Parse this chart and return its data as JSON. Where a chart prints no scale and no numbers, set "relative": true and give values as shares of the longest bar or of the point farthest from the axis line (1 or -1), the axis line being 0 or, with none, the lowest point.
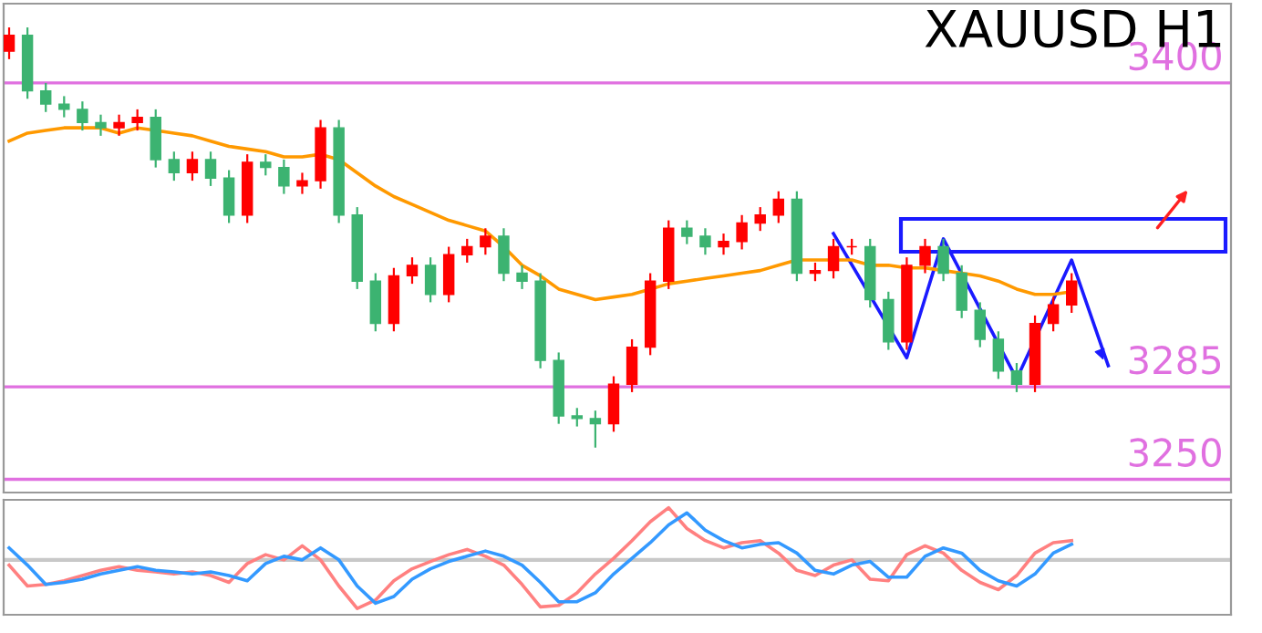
{
  "chart_data": [
    {
      "type": "candlestick",
      "title": "XAUUSD H1",
      "grid": false,
      "categories": [
        null,
        null,
        null,
        null,
        null,
        null,
        null,
        null,
        null,
        null,
        null,
        null,
        null,
        null,
        null,
        null,
        null,
        null,
        null,
        null,
        null,
        null,
        null,
        null,
        null,
        null,
        null,
        null,
        null,
        null,
        null,
        null,
        null,
        null,
        null,
        null,
        null,
        null,
        null,
        null,
        null,
        null,
        null,
        null,
        null,
        null,
        null,
        null,
        null,
        null,
        null,
        null,
        null,
        null,
        null,
        null,
        null,
        null,
        null,
        null,
        null,
        null
      ],
      "ylim": [
        3245,
        3430
      ],
      "series": [
        {
          "type": "candlestick",
          "ohlc": [
            [
              3412,
              3421,
              3409,
              3418
            ],
            [
              3418,
              3421,
              3394,
              3397
            ],
            [
              3397,
              3400,
              3389,
              3392
            ],
            [
              3392,
              3395,
              3387,
              3390
            ],
            [
              3390,
              3393,
              3382,
              3385
            ],
            [
              3385,
              3388,
              3380,
              3383
            ],
            [
              3383,
              3388,
              3380,
              3385
            ],
            [
              3385,
              3390,
              3382,
              3387
            ],
            [
              3387,
              3390,
              3368,
              3371
            ],
            [
              3371,
              3374,
              3363,
              3366
            ],
            [
              3366,
              3374,
              3363,
              3371
            ],
            [
              3371,
              3374,
              3361,
              3364
            ],
            [
              3364,
              3367,
              3347,
              3350
            ],
            [
              3350,
              3373,
              3347,
              3370
            ],
            [
              3370,
              3373,
              3365,
              3368
            ],
            [
              3368,
              3371,
              3358,
              3361
            ],
            [
              3361,
              3366,
              3358,
              3363
            ],
            [
              3363,
              3386,
              3360,
              3383
            ],
            [
              3383,
              3386,
              3347,
              3350
            ],
            [
              3350,
              3353,
              3322,
              3325
            ],
            [
              3325,
              3328,
              3306,
              3309
            ],
            [
              3309,
              3330,
              3306,
              3327
            ],
            [
              3327,
              3334,
              3324,
              3331
            ],
            [
              3331,
              3334,
              3317,
              3320
            ],
            [
              3320,
              3338,
              3317,
              3335
            ],
            [
              3335,
              3341,
              3332,
              3338
            ],
            [
              3338,
              3345,
              3335,
              3342
            ],
            [
              3342,
              3345,
              3325,
              3328
            ],
            [
              3328,
              3331,
              3322,
              3325
            ],
            [
              3325,
              3328,
              3292,
              3295
            ],
            [
              3295,
              3298,
              3271,
              3274
            ],
            [
              3274,
              3277,
              3270,
              3273
            ],
            [
              3273,
              3276,
              3262,
              3271
            ],
            [
              3271,
              3289,
              3268,
              3286
            ],
            [
              3286,
              3303,
              3283,
              3300
            ],
            [
              3300,
              3328,
              3297,
              3325
            ],
            [
              3325,
              3348,
              3322,
              3345
            ],
            [
              3345,
              3348,
              3339,
              3342
            ],
            [
              3342,
              3345,
              3335,
              3338
            ],
            [
              3338,
              3343,
              3335,
              3340
            ],
            [
              3340,
              3350,
              3337,
              3347
            ],
            [
              3347,
              3353,
              3344,
              3350
            ],
            [
              3350,
              3359,
              3347,
              3356
            ],
            [
              3356,
              3359,
              3325,
              3328
            ],
            [
              3328,
              3332,
              3325,
              3329
            ],
            [
              3329,
              3341,
              3326,
              3338
            ],
            [
              3338,
              3341,
              3335,
              3338
            ],
            [
              3338,
              3341,
              3315,
              3318
            ],
            [
              3318,
              3321,
              3299,
              3302
            ],
            [
              3302,
              3334,
              3299,
              3331
            ],
            [
              3331,
              3341,
              3328,
              3338
            ],
            [
              3338,
              3341,
              3325,
              3328
            ],
            [
              3328,
              3331,
              3311,
              3314
            ],
            [
              3314,
              3317,
              3300,
              3303
            ],
            [
              3303,
              3306,
              3288,
              3291
            ],
            [
              3291,
              3294,
              3283,
              3286
            ],
            [
              3286,
              3312,
              3283,
              3309
            ],
            [
              3309,
              3319,
              3306,
              3316
            ],
            [
              3316,
              3328,
              3313,
              3325
            ],
            null,
            null,
            null
          ],
          "colors": [
            "#ff0000",
            "#3cb371",
            "#3cb371",
            "#3cb371",
            "#3cb371",
            "#3cb371",
            "#ff0000",
            "#ff0000",
            "#3cb371",
            "#3cb371",
            "#ff0000",
            "#3cb371",
            "#3cb371",
            "#ff0000",
            "#3cb371",
            "#3cb371",
            "#ff0000",
            "#ff0000",
            "#3cb371",
            "#3cb371",
            "#3cb371",
            "#ff0000",
            "#ff0000",
            "#3cb371",
            "#ff0000",
            "#ff0000",
            "#ff0000",
            "#3cb371",
            "#3cb371",
            "#3cb371",
            "#3cb371",
            "#3cb371",
            "#3cb371",
            "#ff0000",
            "#ff0000",
            "#ff0000",
            "#ff0000",
            "#3cb371",
            "#3cb371",
            "#ff0000",
            "#ff0000",
            "#ff0000",
            "#ff0000",
            "#3cb371",
            "#ff0000",
            "#ff0000",
            "#ff0000",
            "#3cb371",
            "#3cb371",
            "#ff0000",
            "#ff0000",
            "#3cb371",
            "#3cb371",
            "#3cb371",
            "#3cb371",
            "#3cb371",
            "#ff0000",
            "#ff0000",
            "#ff0000",
            null,
            null,
            null
          ]
        },
        {
          "type": "line",
          "color": "#1a1aff",
          "values": [
            null,
            null,
            null,
            null,
            null,
            null,
            null,
            null,
            null,
            null,
            null,
            null,
            null,
            null,
            null,
            null,
            null,
            null,
            null,
            null,
            null,
            null,
            null,
            null,
            null,
            null,
            null,
            null,
            null,
            null,
            null,
            null,
            null,
            null,
            null,
            null,
            null,
            null,
            null,
            null,
            null,
            null,
            null,
            null,
            null,
            3343,
            null,
            null,
            null,
            3296,
            null,
            3341,
            null,
            null,
            null,
            3288,
            null,
            null,
            3333,
            null,
            3293,
            null
          ]
        },
        {
          "type": "line",
          "color": "#ff9900",
          "values": [
            3378,
            3381,
            3382,
            3383,
            3383,
            3383,
            3381,
            3383,
            3382,
            3381,
            3380,
            3378,
            3376,
            3375,
            3374,
            3372,
            3372,
            3373,
            3371,
            3366,
            3361,
            3357,
            3354,
            3351,
            3348,
            3346,
            3344,
            3338,
            3331,
            3327,
            3322,
            3320,
            3318,
            3319,
            3320,
            3322,
            3324,
            3325,
            3326,
            3327,
            3328,
            3329,
            3331,
            3333,
            3333,
            3333,
            3333,
            3331,
            3331,
            3330,
            3330,
            3329,
            3328,
            3327,
            3325,
            3322,
            3320,
            3320,
            3321,
            null,
            null,
            null
          ]
        }
      ],
      "ref_lines": [
        {
          "axis": "y",
          "value": 3400,
          "label": "3400",
          "color": "#e070e0"
        },
        {
          "axis": "y",
          "value": 3285,
          "label": "3285",
          "color": "#e070e0"
        },
        {
          "axis": "y",
          "value": 3250,
          "label": "3250",
          "color": "#e070e0"
        }
      ]
    },
    {
      "type": "line",
      "relative": true,
      "grid": false,
      "categories": [
        null,
        null,
        null,
        null,
        null,
        null,
        null,
        null,
        null,
        null,
        null,
        null,
        null,
        null,
        null,
        null,
        null,
        null,
        null,
        null,
        null,
        null,
        null,
        null,
        null,
        null,
        null,
        null,
        null,
        null,
        null,
        null,
        null,
        null,
        null,
        null,
        null,
        null,
        null,
        null,
        null,
        null,
        null,
        null,
        null,
        null,
        null,
        null,
        null,
        null,
        null,
        null,
        null,
        null,
        null,
        null,
        null,
        null,
        null
      ],
      "series": [
        {
          "color": "#ff8080",
          "values": [
            -0.1,
            -0.5,
            -0.47,
            -0.4,
            -0.3,
            -0.2,
            -0.13,
            -0.2,
            -0.23,
            -0.27,
            -0.23,
            -0.3,
            -0.43,
            -0.07,
            0.1,
            0,
            0.27,
            0,
            -0.5,
            -0.93,
            -0.77,
            -0.4,
            -0.17,
            -0.03,
            0.1,
            0.2,
            0.07,
            -0.1,
            -0.47,
            -0.9,
            -0.87,
            -0.63,
            -0.27,
            0.03,
            0.37,
            0.73,
            1,
            0.6,
            0.37,
            0.23,
            0.33,
            0.37,
            0.13,
            -0.2,
            -0.3,
            -0.1,
            0,
            -0.37,
            -0.4,
            0.1,
            0.27,
            0.13,
            -0.2,
            -0.43,
            -0.57,
            -0.3,
            0.13,
            0.33,
            0.37
          ]
        },
        {
          "color": "#3399ff",
          "values": [
            0.23,
            -0.1,
            -0.47,
            -0.43,
            -0.37,
            -0.27,
            -0.2,
            -0.13,
            -0.2,
            -0.23,
            -0.27,
            -0.23,
            -0.3,
            -0.4,
            -0.07,
            0.07,
            0,
            0.23,
            0,
            -0.5,
            -0.83,
            -0.7,
            -0.37,
            -0.17,
            -0.03,
            0.07,
            0.17,
            0.07,
            -0.1,
            -0.43,
            -0.8,
            -0.8,
            -0.63,
            -0.27,
            0.03,
            0.33,
            0.67,
            0.9,
            0.57,
            0.37,
            0.23,
            0.3,
            0.33,
            0.13,
            -0.2,
            -0.27,
            -0.1,
            -0.03,
            -0.33,
            -0.33,
            0.07,
            0.23,
            0.13,
            -0.2,
            -0.4,
            -0.5,
            -0.27,
            0.13,
            0.3
          ]
        }
      ]
    }
  ]
}
